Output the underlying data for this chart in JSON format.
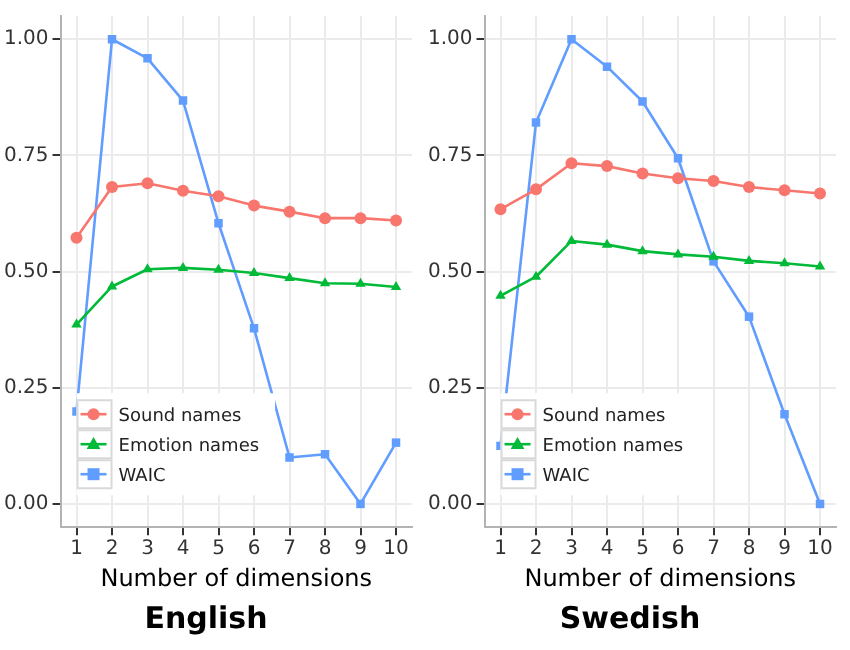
{
  "chart_data": [
    {
      "type": "line",
      "title": "English",
      "xlabel": "Number of dimensions",
      "x": [
        1,
        2,
        3,
        4,
        5,
        6,
        7,
        8,
        9,
        10
      ],
      "xlim": [
        0.55,
        10.45
      ],
      "xticks": [
        1,
        2,
        3,
        4,
        5,
        6,
        7,
        8,
        9,
        10
      ],
      "ylim": [
        -0.05,
        1.05
      ],
      "yticks": [
        {
          "value": 0,
          "label": "0.00"
        },
        {
          "value": 0.25,
          "label": "0.25"
        },
        {
          "value": 0.5,
          "label": "0.50"
        },
        {
          "value": 0.75,
          "label": "0.75"
        },
        {
          "value": 1,
          "label": "1.00"
        }
      ],
      "grid": true,
      "legend": "bottom left",
      "series": [
        {
          "name": "Sound names",
          "color": "#f8766d",
          "marker": "circle",
          "values": [
            0.573,
            0.682,
            0.69,
            0.674,
            0.662,
            0.642,
            0.629,
            0.615,
            0.615,
            0.61
          ]
        },
        {
          "name": "Emotion names",
          "color": "#00ba38",
          "marker": "triangle",
          "values": [
            0.386,
            0.468,
            0.505,
            0.508,
            0.504,
            0.497,
            0.486,
            0.475,
            0.474,
            0.467
          ]
        },
        {
          "name": "WAIC",
          "color": "#619cff",
          "marker": "square",
          "values": [
            0.199,
            1.0,
            0.959,
            0.868,
            0.604,
            0.378,
            0.1,
            0.107,
            0.0,
            0.132
          ]
        }
      ]
    },
    {
      "type": "line",
      "title": "Swedish",
      "xlabel": "Number of dimensions",
      "x": [
        1,
        2,
        3,
        4,
        5,
        6,
        7,
        8,
        9,
        10
      ],
      "xlim": [
        0.55,
        10.45
      ],
      "xticks": [
        1,
        2,
        3,
        4,
        5,
        6,
        7,
        8,
        9,
        10
      ],
      "ylim": [
        -0.05,
        1.05
      ],
      "yticks": [
        {
          "value": 0,
          "label": "0.00"
        },
        {
          "value": 0.25,
          "label": "0.25"
        },
        {
          "value": 0.5,
          "label": "0.50"
        },
        {
          "value": 0.75,
          "label": "0.75"
        },
        {
          "value": 1,
          "label": "1.00"
        }
      ],
      "grid": true,
      "legend": "bottom left",
      "series": [
        {
          "name": "Sound names",
          "color": "#f8766d",
          "marker": "circle",
          "values": [
            0.634,
            0.677,
            0.733,
            0.727,
            0.711,
            0.701,
            0.695,
            0.682,
            0.675,
            0.668
          ]
        },
        {
          "name": "Emotion names",
          "color": "#00ba38",
          "marker": "triangle",
          "values": [
            0.448,
            0.489,
            0.566,
            0.558,
            0.544,
            0.537,
            0.532,
            0.523,
            0.518,
            0.511
          ]
        },
        {
          "name": "WAIC",
          "color": "#619cff",
          "marker": "square",
          "values": [
            0.125,
            0.821,
            1.0,
            0.941,
            0.866,
            0.744,
            0.522,
            0.403,
            0.193,
            0.0
          ]
        }
      ]
    }
  ]
}
